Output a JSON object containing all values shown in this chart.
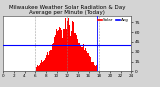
{
  "title": "Milwaukee Weather Solar Radiation & Day Average per Minute (Today)",
  "bg_color": "#d4d4d4",
  "plot_bg": "#ffffff",
  "bar_color": "#ff0000",
  "avg_line_color": "#0000ff",
  "vline_color": "#0000ff",
  "grid_color": "#888888",
  "legend_solar_color": "#ff0000",
  "legend_avg_color": "#0000ff",
  "num_bars": 1440,
  "peak_minute": 750,
  "peak_value": 78,
  "avg_value": 28,
  "current_minute": 1050,
  "ylim": [
    0,
    85
  ],
  "yticks": [
    0,
    15,
    30,
    45,
    60,
    75
  ],
  "ytick_labels": [
    "0",
    "15",
    "30",
    "45",
    "60",
    "75"
  ],
  "xlim": [
    0,
    1440
  ],
  "xticks": [
    0,
    120,
    240,
    360,
    480,
    600,
    720,
    840,
    960,
    1080,
    1200,
    1320,
    1440
  ],
  "xtick_labels": [
    "0",
    "2",
    "4",
    "6",
    "8",
    "10",
    "12",
    "14",
    "16",
    "18",
    "20",
    "22",
    "24"
  ],
  "grid_xticks": [
    360,
    720,
    1080
  ],
  "title_fontsize": 4.0,
  "tick_fontsize": 3.0,
  "ylabel_fontsize": 3.2,
  "legend_fontsize": 3.0
}
